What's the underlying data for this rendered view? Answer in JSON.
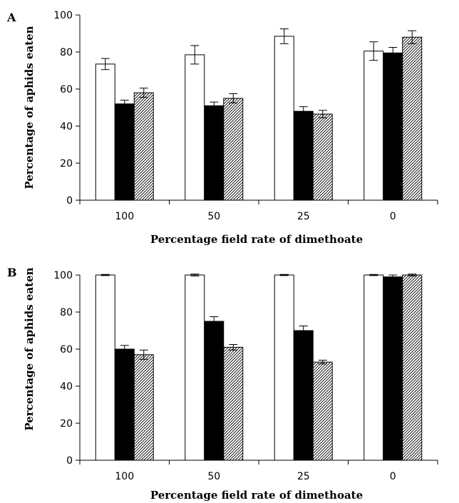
{
  "chart_data": [
    {
      "type": "bar",
      "panel_label": "A",
      "title": "",
      "xlabel": "Percentage field rate of dimethoate",
      "ylabel": "Percentage of aphids eaten",
      "categories": [
        "100",
        "50",
        "25",
        "0"
      ],
      "ylim": [
        0,
        100
      ],
      "yticks": [
        "0",
        "20",
        "40",
        "60",
        "80",
        "100"
      ],
      "grid": false,
      "legend": "none",
      "series": [
        {
          "fill": "white",
          "values": [
            73.5,
            78.5,
            88.5,
            80.5
          ],
          "errors": [
            3,
            5,
            4,
            5
          ]
        },
        {
          "fill": "black",
          "values": [
            52,
            51,
            48,
            79.5
          ],
          "errors": [
            2,
            2,
            2.5,
            3
          ]
        },
        {
          "fill": "hatched",
          "values": [
            58,
            55,
            46.5,
            88
          ],
          "errors": [
            2.5,
            2.5,
            2,
            3.5
          ]
        }
      ]
    },
    {
      "type": "bar",
      "panel_label": "B",
      "title": "",
      "xlabel": "Percentage field rate of dimethoate",
      "ylabel": "Percentage of aphids eaten",
      "categories": [
        "100",
        "50",
        "25",
        "0"
      ],
      "ylim": [
        0,
        100
      ],
      "yticks": [
        "0",
        "20",
        "40",
        "60",
        "80",
        "100"
      ],
      "grid": false,
      "legend": "none",
      "series": [
        {
          "fill": "white",
          "values": [
            100,
            100,
            100,
            100
          ],
          "errors": [
            0.3,
            0.5,
            0.3,
            0.3
          ]
        },
        {
          "fill": "black",
          "values": [
            60,
            75,
            70,
            99
          ],
          "errors": [
            2,
            2.5,
            2.5,
            1
          ]
        },
        {
          "fill": "hatched",
          "values": [
            57,
            61,
            53,
            100
          ],
          "errors": [
            2.5,
            1.5,
            1,
            0.5
          ]
        }
      ]
    }
  ]
}
